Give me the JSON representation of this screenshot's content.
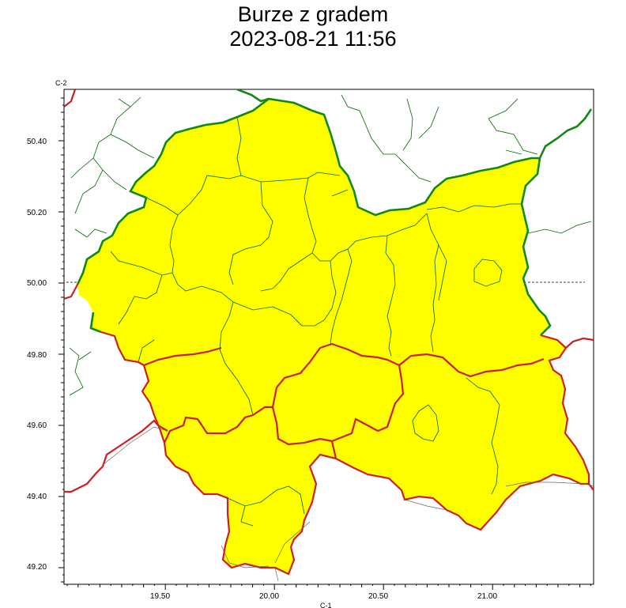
{
  "title": {
    "line1": "Burze z gradem",
    "line2": "2023-08-21 11:56"
  },
  "map": {
    "corner_top_left": "C-2",
    "corner_bottom": "C-1",
    "lat_labels": [
      "50.40",
      "50.20",
      "50.00",
      "49.80",
      "49.60",
      "49.40",
      "49.20"
    ],
    "lon_labels": [
      "19.50",
      "20.00",
      "20.50",
      "21.00"
    ],
    "colors": {
      "warning_fill": "#ffff00",
      "region_outline": "#008000",
      "county_lines": "#006400",
      "border_red": "#cc2020",
      "background": "#ffffff"
    }
  }
}
